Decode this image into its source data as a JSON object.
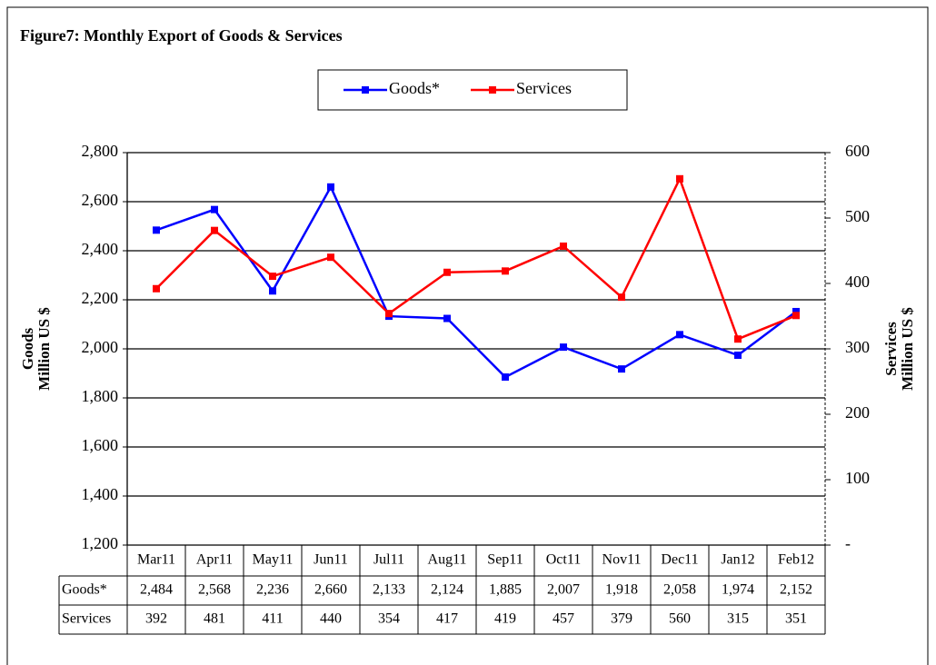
{
  "chart_data": {
    "type": "line",
    "title": "Figure7: Monthly Export of Goods & Services",
    "ylabel": [
      "Goods",
      "Million US $"
    ],
    "y2label": [
      "Services",
      "Million US $"
    ],
    "categories": [
      "Mar11",
      "Apr11",
      "May11",
      "Jun11",
      "Jul11",
      "Aug11",
      "Sep11",
      "Oct11",
      "Nov11",
      "Dec11",
      "Jan12",
      "Feb12"
    ],
    "series": [
      {
        "name": "Goods*",
        "color": "#0000ff",
        "values": [
          2484,
          2568,
          2236,
          2660,
          2133,
          2124,
          1885,
          2007,
          1918,
          2058,
          1974,
          2152
        ],
        "value_labels": [
          "2,484",
          "2,568",
          "2,236",
          "2,660",
          "2,133",
          "2,124",
          "1,885",
          "2,007",
          "1,918",
          "2,058",
          "1,974",
          "2,152"
        ]
      },
      {
        "name": "Services",
        "color": "#ff0000",
        "axis": "y2",
        "values": [
          392,
          481,
          411,
          440,
          354,
          417,
          419,
          457,
          379,
          560,
          315,
          351
        ]
      }
    ],
    "ylim": [
      1200,
      2800
    ],
    "yticks": [
      {
        "value": 1200,
        "label": "1,200"
      },
      {
        "value": 1400,
        "label": "1,400"
      },
      {
        "value": 1600,
        "label": "1,600"
      },
      {
        "value": 1800,
        "label": "1,800"
      },
      {
        "value": 2000,
        "label": "2,000"
      },
      {
        "value": 2200,
        "label": "2,200"
      },
      {
        "value": 2400,
        "label": "2,400"
      },
      {
        "value": 2600,
        "label": "2,600"
      },
      {
        "value": 2800,
        "label": "2,800"
      }
    ],
    "y2lim": [
      0,
      600
    ],
    "y2ticks": [
      {
        "value": 0,
        "label": "-"
      },
      100,
      200,
      300,
      400,
      500,
      600
    ],
    "grid": true,
    "legend": "top"
  }
}
